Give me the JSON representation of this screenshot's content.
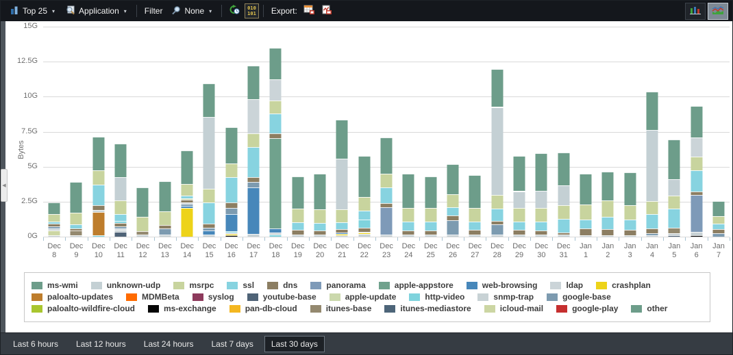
{
  "toolbar": {
    "top_label": "Top 25",
    "dimension_label": "Application",
    "filter_label": "Filter",
    "filter_value": "None",
    "export_label": "Export:",
    "binary_top": "010",
    "binary_bottom": "101"
  },
  "colors": {
    "ms-wmi": "#6D9D8A",
    "unknown-udp": "#C4D0D4",
    "msrpc": "#C8D49E",
    "ssl": "#87D3E0",
    "dns": "#8C7E62",
    "panorama": "#7E9AB8",
    "apple-appstore": "#70A28D",
    "web-browsing": "#4787BA",
    "ldap": "#CBD4D8",
    "crashplan": "#EDD319",
    "paloalto-updates": "#BE7D2C",
    "MDMBeta": "#FF6B00",
    "syslog": "#8D3A5C",
    "youtube-base": "#4F6377",
    "apple-update": "#CBD8AC",
    "http-video": "#7FD3DD",
    "snmp-trap": "#C8D2D5",
    "google-base": "#7D9BB0",
    "paloalto-wildfire-cloud": "#A9C62F",
    "ms-exchange": "#060606",
    "pan-db-cloud": "#F4B721",
    "itunes-base": "#94896F",
    "itunes-mediastore": "#4D6579",
    "icloud-mail": "#CCD6A3",
    "google-play": "#C62F2F",
    "other": "#6D9D8A"
  },
  "chart_data": {
    "type": "bar",
    "stacked": true,
    "title": "",
    "xlabel": "",
    "ylabel": "Bytes",
    "ylim": [
      0,
      15
    ],
    "yticks": [
      0,
      2.5,
      5,
      7.5,
      10,
      12.5,
      15
    ],
    "ytick_labels": [
      "0G",
      "2.5G",
      "5G",
      "7.5G",
      "10G",
      "12.5G",
      "15G"
    ],
    "grid": true,
    "legend_position": "bottom",
    "unit": "G",
    "bars": [
      {
        "month": "Dec",
        "day": "8",
        "segments": [
          [
            "snmp-trap",
            0.1
          ],
          [
            "icloud-mail",
            0.35
          ],
          [
            "ldap",
            0.12
          ],
          [
            "google-base",
            0.15
          ],
          [
            "dns",
            0.2
          ],
          [
            "ssl",
            0.15
          ],
          [
            "msrpc",
            0.55
          ],
          [
            "ms-wmi",
            0.83
          ]
        ]
      },
      {
        "month": "Dec",
        "day": "9",
        "segments": [
          [
            "snmp-trap",
            0.12
          ],
          [
            "itunes-base",
            0.3
          ],
          [
            "dns",
            0.15
          ],
          [
            "ssl",
            0.3
          ],
          [
            "msrpc",
            0.85
          ],
          [
            "ms-wmi",
            2.18
          ]
        ]
      },
      {
        "month": "Dec",
        "day": "10",
        "segments": [
          [
            "http-video",
            0.1
          ],
          [
            "paloalto-updates",
            1.65
          ],
          [
            "snmp-trap",
            0.18
          ],
          [
            "dns",
            0.3
          ],
          [
            "ssl",
            1.5
          ],
          [
            "msrpc",
            1.0
          ],
          [
            "ms-wmi",
            2.42
          ]
        ]
      },
      {
        "month": "Dec",
        "day": "11",
        "segments": [
          [
            "youtube-base",
            0.32
          ],
          [
            "snmp-trap",
            0.15
          ],
          [
            "ldap",
            0.12
          ],
          [
            "google-base",
            0.15
          ],
          [
            "dns",
            0.22
          ],
          [
            "http-video",
            0.15
          ],
          [
            "ssl",
            0.5
          ],
          [
            "msrpc",
            1.0
          ],
          [
            "unknown-udp",
            1.62
          ],
          [
            "ms-wmi",
            2.42
          ]
        ]
      },
      {
        "month": "Dec",
        "day": "12",
        "segments": [
          [
            "snmp-trap",
            0.13
          ],
          [
            "itunes-base",
            0.27
          ],
          [
            "msrpc",
            1.0
          ],
          [
            "ms-wmi",
            2.1
          ]
        ]
      },
      {
        "month": "Dec",
        "day": "13",
        "segments": [
          [
            "snmp-trap",
            0.13
          ],
          [
            "google-base",
            0.45
          ],
          [
            "dns",
            0.25
          ],
          [
            "msrpc",
            1.0
          ],
          [
            "ms-wmi",
            2.12
          ]
        ]
      },
      {
        "month": "Dec",
        "day": "14",
        "segments": [
          [
            "crashplan",
            2.05
          ],
          [
            "web-browsing",
            0.16
          ],
          [
            "google-base",
            0.13
          ],
          [
            "snmp-trap",
            0.1
          ],
          [
            "dns",
            0.2
          ],
          [
            "apple-update",
            0.12
          ],
          [
            "ssl",
            0.15
          ],
          [
            "msrpc",
            0.86
          ],
          [
            "ms-wmi",
            2.38
          ]
        ]
      },
      {
        "month": "Dec",
        "day": "15",
        "segments": [
          [
            "snmp-trap",
            0.16
          ],
          [
            "web-browsing",
            0.26
          ],
          [
            "google-base",
            0.2
          ],
          [
            "dns",
            0.33
          ],
          [
            "ssl",
            1.47
          ],
          [
            "msrpc",
            0.98
          ],
          [
            "unknown-udp",
            5.16
          ],
          [
            "ms-wmi",
            2.39
          ]
        ]
      },
      {
        "month": "Dec",
        "day": "16",
        "segments": [
          [
            "ms-exchange",
            0.08
          ],
          [
            "crashplan",
            0.1
          ],
          [
            "snmp-trap",
            0.12
          ],
          [
            "http-video",
            0.1
          ],
          [
            "web-browsing",
            1.22
          ],
          [
            "google-base",
            0.44
          ],
          [
            "dns",
            0.37
          ],
          [
            "ssl",
            1.8
          ],
          [
            "msrpc",
            1.0
          ],
          [
            "ms-wmi",
            2.57
          ]
        ]
      },
      {
        "month": "Dec",
        "day": "17",
        "segments": [
          [
            "snmp-trap",
            0.2
          ],
          [
            "web-browsing",
            3.3
          ],
          [
            "google-base",
            0.4
          ],
          [
            "dns",
            0.33
          ],
          [
            "ssl",
            2.15
          ],
          [
            "msrpc",
            1.0
          ],
          [
            "ldap",
            2.45
          ],
          [
            "ms-wmi",
            2.37
          ]
        ]
      },
      {
        "month": "Dec",
        "day": "18",
        "segments": [
          [
            "http-video",
            0.16
          ],
          [
            "snmp-trap",
            0.15
          ],
          [
            "web-browsing",
            0.3
          ],
          [
            "apple-appstore",
            6.45
          ],
          [
            "dns",
            0.33
          ],
          [
            "ssl",
            1.4
          ],
          [
            "msrpc",
            0.95
          ],
          [
            "ldap",
            1.5
          ],
          [
            "ms-wmi",
            2.26
          ]
        ]
      },
      {
        "month": "Dec",
        "day": "19",
        "segments": [
          [
            "snmp-trap",
            0.16
          ],
          [
            "dns",
            0.35
          ],
          [
            "ssl",
            0.5
          ],
          [
            "msrpc",
            1.0
          ],
          [
            "ms-wmi",
            2.29
          ]
        ]
      },
      {
        "month": "Dec",
        "day": "20",
        "segments": [
          [
            "snmp-trap",
            0.15
          ],
          [
            "dns",
            0.3
          ],
          [
            "ssl",
            0.52
          ],
          [
            "msrpc",
            1.0
          ],
          [
            "ms-wmi",
            2.53
          ]
        ]
      },
      {
        "month": "Dec",
        "day": "21",
        "segments": [
          [
            "snmp-trap",
            0.12
          ],
          [
            "crashplan",
            0.08
          ],
          [
            "web-browsing",
            0.08
          ],
          [
            "dns",
            0.25
          ],
          [
            "ssl",
            0.5
          ],
          [
            "msrpc",
            0.92
          ],
          [
            "unknown-udp",
            3.6
          ],
          [
            "ms-wmi",
            2.8
          ]
        ]
      },
      {
        "month": "Dec",
        "day": "22",
        "segments": [
          [
            "snmp-trap",
            0.2
          ],
          [
            "crashplan",
            0.08
          ],
          [
            "google-base",
            0.08
          ],
          [
            "dns",
            0.3
          ],
          [
            "http-video",
            0.55
          ],
          [
            "ssl",
            0.64
          ],
          [
            "msrpc",
            1.0
          ],
          [
            "ms-wmi",
            2.9
          ]
        ]
      },
      {
        "month": "Dec",
        "day": "23",
        "segments": [
          [
            "snmp-trap",
            0.16
          ],
          [
            "panorama",
            1.95
          ],
          [
            "dns",
            0.3
          ],
          [
            "ssl",
            1.1
          ],
          [
            "msrpc",
            1.0
          ],
          [
            "ms-wmi",
            2.59
          ]
        ]
      },
      {
        "month": "Dec",
        "day": "24",
        "segments": [
          [
            "snmp-trap",
            0.16
          ],
          [
            "dns",
            0.3
          ],
          [
            "ssl",
            0.6
          ],
          [
            "msrpc",
            1.0
          ],
          [
            "ms-wmi",
            2.44
          ]
        ]
      },
      {
        "month": "Dec",
        "day": "25",
        "segments": [
          [
            "snmp-trap",
            0.13
          ],
          [
            "dns",
            0.33
          ],
          [
            "ssl",
            0.6
          ],
          [
            "msrpc",
            1.0
          ],
          [
            "ms-wmi",
            2.24
          ]
        ]
      },
      {
        "month": "Dec",
        "day": "26",
        "segments": [
          [
            "snmp-trap",
            0.13
          ],
          [
            "google-base",
            1.05
          ],
          [
            "dns",
            0.33
          ],
          [
            "ssl",
            0.57
          ],
          [
            "msrpc",
            0.95
          ],
          [
            "ms-wmi",
            2.17
          ]
        ]
      },
      {
        "month": "Dec",
        "day": "27",
        "segments": [
          [
            "snmp-trap",
            0.15
          ],
          [
            "dns",
            0.33
          ],
          [
            "ssl",
            0.6
          ],
          [
            "msrpc",
            0.95
          ],
          [
            "ms-wmi",
            2.37
          ]
        ]
      },
      {
        "month": "Dec",
        "day": "28",
        "segments": [
          [
            "snmp-trap",
            0.13
          ],
          [
            "google-base",
            0.73
          ],
          [
            "dns",
            0.28
          ],
          [
            "ssl",
            0.85
          ],
          [
            "msrpc",
            1.0
          ],
          [
            "unknown-udp",
            6.27
          ],
          [
            "ms-wmi",
            2.69
          ]
        ]
      },
      {
        "month": "Dec",
        "day": "29",
        "segments": [
          [
            "snmp-trap",
            0.13
          ],
          [
            "dns",
            0.37
          ],
          [
            "ssl",
            0.6
          ],
          [
            "msrpc",
            0.95
          ],
          [
            "unknown-udp",
            1.2
          ],
          [
            "ms-wmi",
            2.5
          ]
        ]
      },
      {
        "month": "Dec",
        "day": "30",
        "segments": [
          [
            "snmp-trap",
            0.13
          ],
          [
            "dns",
            0.33
          ],
          [
            "ssl",
            0.6
          ],
          [
            "msrpc",
            1.0
          ],
          [
            "unknown-udp",
            1.2
          ],
          [
            "ms-wmi",
            2.69
          ]
        ]
      },
      {
        "month": "Dec",
        "day": "31",
        "segments": [
          [
            "snmp-trap",
            0.16
          ],
          [
            "dns",
            0.15
          ],
          [
            "ssl",
            0.95
          ],
          [
            "msrpc",
            1.0
          ],
          [
            "unknown-udp",
            1.4
          ],
          [
            "ms-wmi",
            2.34
          ]
        ]
      },
      {
        "month": "Jan",
        "day": "1",
        "segments": [
          [
            "snmp-trap",
            0.12
          ],
          [
            "dns",
            0.45
          ],
          [
            "ssl",
            0.65
          ],
          [
            "msrpc",
            1.1
          ],
          [
            "ms-wmi",
            2.18
          ]
        ]
      },
      {
        "month": "Jan",
        "day": "2",
        "segments": [
          [
            "snmp-trap",
            0.12
          ],
          [
            "dns",
            0.4
          ],
          [
            "ssl",
            0.9
          ],
          [
            "msrpc",
            1.15
          ],
          [
            "ms-wmi",
            2.08
          ]
        ]
      },
      {
        "month": "Jan",
        "day": "3",
        "segments": [
          [
            "snmp-trap",
            0.12
          ],
          [
            "dns",
            0.37
          ],
          [
            "ssl",
            0.75
          ],
          [
            "msrpc",
            1.0
          ],
          [
            "ms-wmi",
            2.36
          ]
        ]
      },
      {
        "month": "Jan",
        "day": "4",
        "segments": [
          [
            "snmp-trap",
            0.08
          ],
          [
            "google-base",
            0.16
          ],
          [
            "dns",
            0.33
          ],
          [
            "ssl",
            1.05
          ],
          [
            "msrpc",
            0.9
          ],
          [
            "unknown-udp",
            5.1
          ],
          [
            "ms-wmi",
            2.73
          ]
        ]
      },
      {
        "month": "Jan",
        "day": "5",
        "segments": [
          [
            "youtube-base",
            0.1
          ],
          [
            "snmp-trap",
            0.16
          ],
          [
            "itunes-base",
            0.4
          ],
          [
            "ssl",
            1.35
          ],
          [
            "msrpc",
            0.9
          ],
          [
            "unknown-udp",
            1.2
          ],
          [
            "ms-wmi",
            2.84
          ]
        ]
      },
      {
        "month": "Jan",
        "day": "6",
        "segments": [
          [
            "ms-exchange",
            0.08
          ],
          [
            "snmp-trap",
            0.26
          ],
          [
            "panorama",
            2.64
          ],
          [
            "dns",
            0.25
          ],
          [
            "ssl",
            1.5
          ],
          [
            "msrpc",
            1.0
          ],
          [
            "ldap",
            1.35
          ],
          [
            "ms-wmi",
            2.27
          ]
        ]
      },
      {
        "month": "Jan",
        "day": "7",
        "segments": [
          [
            "google-base",
            0.26
          ],
          [
            "dns",
            0.3
          ],
          [
            "ssl",
            0.36
          ],
          [
            "msrpc",
            0.55
          ],
          [
            "ms-wmi",
            1.08
          ]
        ]
      }
    ]
  },
  "legend": {
    "rows": [
      [
        "ms-wmi",
        "unknown-udp",
        "msrpc",
        "ssl",
        "dns",
        "panorama",
        "apple-appstore",
        "web-browsing",
        "ldap",
        "crashplan"
      ],
      [
        "paloalto-updates",
        "MDMBeta",
        "syslog",
        "youtube-base",
        "apple-update",
        "http-video",
        "snmp-trap",
        "google-base"
      ],
      [
        "paloalto-wildfire-cloud",
        "ms-exchange",
        "pan-db-cloud",
        "itunes-base",
        "itunes-mediastore",
        "icloud-mail",
        "google-play",
        "other"
      ]
    ]
  },
  "time_tabs": {
    "items": [
      "Last 6 hours",
      "Last 12 hours",
      "Last 24 hours",
      "Last 7 days",
      "Last 30 days"
    ],
    "active": "Last 30 days"
  }
}
